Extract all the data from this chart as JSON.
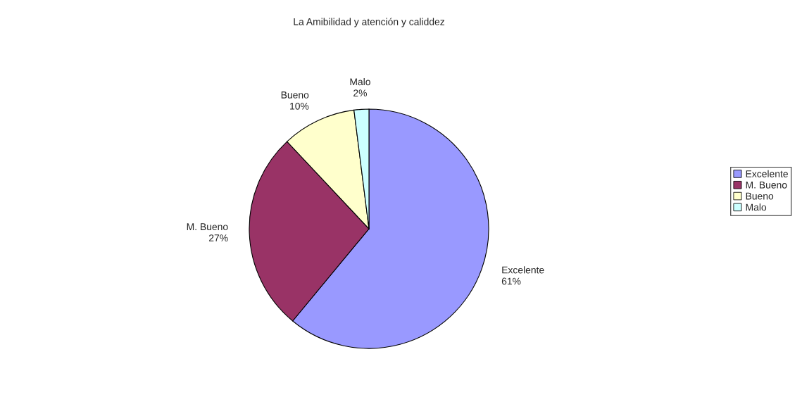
{
  "chart_data": {
    "type": "pie",
    "title": "La Amibilidad y atención y caliddez",
    "categories": [
      "Excelente",
      "M. Bueno",
      "Bueno",
      "Malo"
    ],
    "values": [
      61,
      27,
      10,
      2
    ],
    "value_labels": [
      "61%",
      "27%",
      "10%",
      "2%"
    ],
    "colors": [
      "#9999ff",
      "#993366",
      "#ffffcc",
      "#ccffff"
    ],
    "legend": "right"
  }
}
